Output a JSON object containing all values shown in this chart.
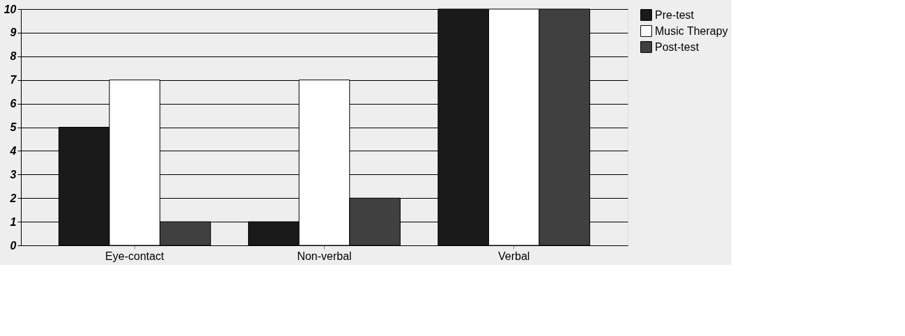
{
  "chart_data": {
    "type": "bar",
    "categories": [
      "Eye-contact",
      "Non-verbal",
      "Verbal"
    ],
    "series": [
      {
        "name": "Pre-test",
        "color": "#1a1a1a",
        "values": [
          5,
          1,
          10
        ]
      },
      {
        "name": "Music Therapy",
        "color": "#ffffff",
        "values": [
          7,
          7,
          10
        ]
      },
      {
        "name": "Post-test",
        "color": "#404040",
        "values": [
          1,
          2,
          10
        ]
      }
    ],
    "ylim": [
      0,
      10
    ],
    "yticks": [
      0,
      1,
      2,
      3,
      4,
      5,
      6,
      7,
      8,
      9,
      10
    ],
    "grid": "y",
    "legend": "right"
  }
}
